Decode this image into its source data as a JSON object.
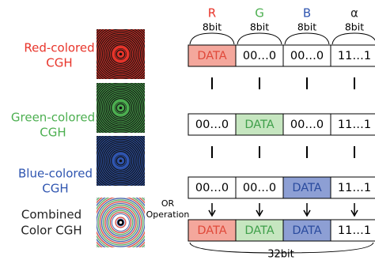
{
  "sources": [
    {
      "lines": [
        "Red-colored",
        "CGH"
      ]
    },
    {
      "lines": [
        "Green-colored",
        "CGH"
      ]
    },
    {
      "lines": [
        "Blue-colored",
        "CGH"
      ]
    },
    {
      "lines": [
        "Combined",
        "Color CGH"
      ]
    }
  ],
  "channels": [
    {
      "name": "R",
      "bits": "8bit"
    },
    {
      "name": "G",
      "bits": "8bit"
    },
    {
      "name": "B",
      "bits": "8bit"
    },
    {
      "name": "α",
      "bits": "8bit"
    }
  ],
  "rows": [
    {
      "cells": [
        "DATA",
        "00…0",
        "00…0",
        "11…1"
      ]
    },
    {
      "cells": [
        "00…0",
        "DATA",
        "00…0",
        "11…1"
      ]
    },
    {
      "cells": [
        "00…0",
        "00…0",
        "DATA",
        "11…1"
      ]
    },
    {
      "cells": [
        "DATA",
        "DATA",
        "DATA",
        "11…1"
      ]
    }
  ],
  "operation": [
    "OR",
    "Operation"
  ],
  "total": "32bit"
}
